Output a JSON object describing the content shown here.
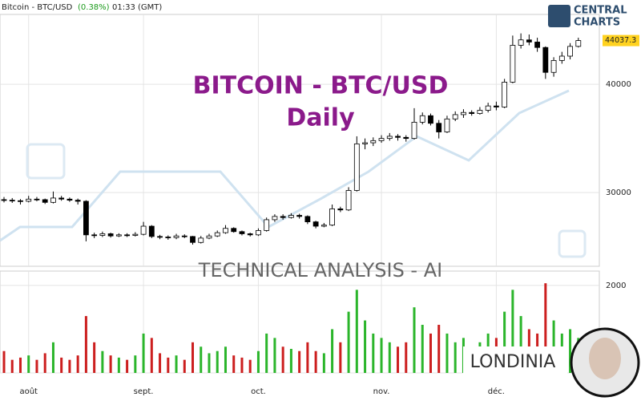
{
  "header": {
    "instrument": "Bitcoin - BTC/USD",
    "change": "(0.38%)",
    "time": "01:33 (GMT)",
    "brand": "CENTRAL",
    "brand2": "CHARTS",
    "ai_label": "TECHNICAL  ANALYSIS - AI",
    "partner": "LONDINIA"
  },
  "chart_data": {
    "type": "candlestick",
    "title": "BITCOIN - BTC/USD",
    "subtitle": "Daily",
    "up_color": "#ffffff",
    "down_color": "#000000",
    "volume_up_color": "#2bb52b",
    "volume_down_color": "#cc1f1f",
    "open": [
      29350,
      29300,
      29250,
      29200,
      29400,
      29350,
      29100,
      29500,
      29400,
      29300,
      29200,
      26100,
      26050,
      26200,
      26000,
      26100,
      26050,
      26150,
      26900,
      25950,
      25900,
      25850,
      26000,
      25950,
      25400,
      25800,
      26000,
      26300,
      26700,
      26400,
      26200,
      26100,
      26500,
      27500,
      27800,
      27700,
      27900,
      27800,
      27300,
      26900,
      27000,
      28500,
      28400,
      30200,
      34500,
      34600,
      34800,
      35000,
      35200,
      35100,
      35000,
      36500,
      37100,
      36400,
      35600,
      36800,
      37200,
      37400,
      37300,
      37600,
      38000,
      37900,
      40200,
      43600,
      44100,
      43900,
      43400,
      41100,
      42200,
      42600,
      43500
    ],
    "high": [
      29600,
      29500,
      29400,
      29700,
      29600,
      29450,
      30100,
      29700,
      29550,
      29450,
      29300,
      26300,
      26400,
      26300,
      26250,
      26250,
      26350,
      27300,
      27000,
      26100,
      26050,
      26200,
      26150,
      26000,
      26000,
      26200,
      26500,
      27000,
      26800,
      26500,
      26300,
      26700,
      27700,
      28000,
      28000,
      28100,
      28050,
      27900,
      27400,
      27200,
      28900,
      28700,
      30500,
      35200,
      35000,
      35100,
      35300,
      35500,
      35400,
      35300,
      37800,
      37400,
      37300,
      36700,
      37100,
      37500,
      37700,
      37600,
      37900,
      38300,
      38400,
      40500,
      44500,
      44700,
      44600,
      44300,
      43500,
      42500,
      43000,
      43800,
      44300
    ],
    "low": [
      29100,
      29050,
      28900,
      29100,
      29200,
      28950,
      29000,
      29250,
      29150,
      28900,
      25500,
      25800,
      25900,
      25850,
      25900,
      25900,
      25950,
      26050,
      25800,
      25700,
      25650,
      25700,
      25800,
      25200,
      25300,
      25700,
      25900,
      26200,
      26300,
      26050,
      25950,
      26000,
      26400,
      27300,
      27500,
      27600,
      27600,
      27100,
      26700,
      26800,
      26900,
      28200,
      28300,
      30100,
      34000,
      34300,
      34600,
      34800,
      34800,
      34700,
      34900,
      36300,
      36200,
      35000,
      35500,
      36600,
      36900,
      37100,
      37200,
      37400,
      37600,
      37800,
      40100,
      43300,
      43600,
      43000,
      40500,
      40700,
      41900,
      42300,
      43400
    ],
    "close": [
      29300,
      29250,
      29200,
      29400,
      29350,
      29100,
      29500,
      29400,
      29300,
      29200,
      26100,
      26050,
      26200,
      26000,
      26100,
      26050,
      26150,
      26900,
      25950,
      25900,
      25850,
      26000,
      25950,
      25400,
      25800,
      26000,
      26300,
      26700,
      26400,
      26200,
      26100,
      26500,
      27500,
      27800,
      27700,
      27900,
      27800,
      27300,
      26900,
      27000,
      28500,
      28400,
      30200,
      34500,
      34600,
      34800,
      35000,
      35200,
      35100,
      35000,
      36500,
      37100,
      36400,
      35600,
      36800,
      37200,
      37400,
      37300,
      37600,
      38000,
      37900,
      40200,
      43600,
      44100,
      43900,
      43400,
      41100,
      42200,
      42600,
      43500,
      44037.3
    ],
    "volume": [
      500,
      300,
      350,
      400,
      300,
      450,
      700,
      350,
      300,
      400,
      1300,
      700,
      500,
      400,
      350,
      300,
      400,
      900,
      800,
      450,
      350,
      400,
      300,
      700,
      600,
      450,
      500,
      600,
      400,
      350,
      300,
      500,
      900,
      800,
      600,
      550,
      500,
      700,
      500,
      450,
      1000,
      700,
      1400,
      1900,
      1200,
      900,
      800,
      700,
      600,
      700,
      1500,
      1100,
      900,
      1100,
      900,
      700,
      800,
      600,
      700,
      900,
      800,
      1400,
      1900,
      1300,
      1000,
      900,
      2050,
      1200,
      900,
      1000,
      800
    ],
    "xticks": [
      {
        "value": 3,
        "label": "août"
      },
      {
        "value": 17,
        "label": "sept."
      },
      {
        "value": 31,
        "label": "oct."
      },
      {
        "value": 46,
        "label": "nov."
      },
      {
        "value": 60,
        "label": "déc."
      }
    ],
    "ylim": [
      23200,
      46450
    ],
    "yticks": [
      30000,
      40000
    ],
    "y2lim": [
      0,
      2200
    ],
    "y2ticks": [
      0,
      2000
    ]
  }
}
